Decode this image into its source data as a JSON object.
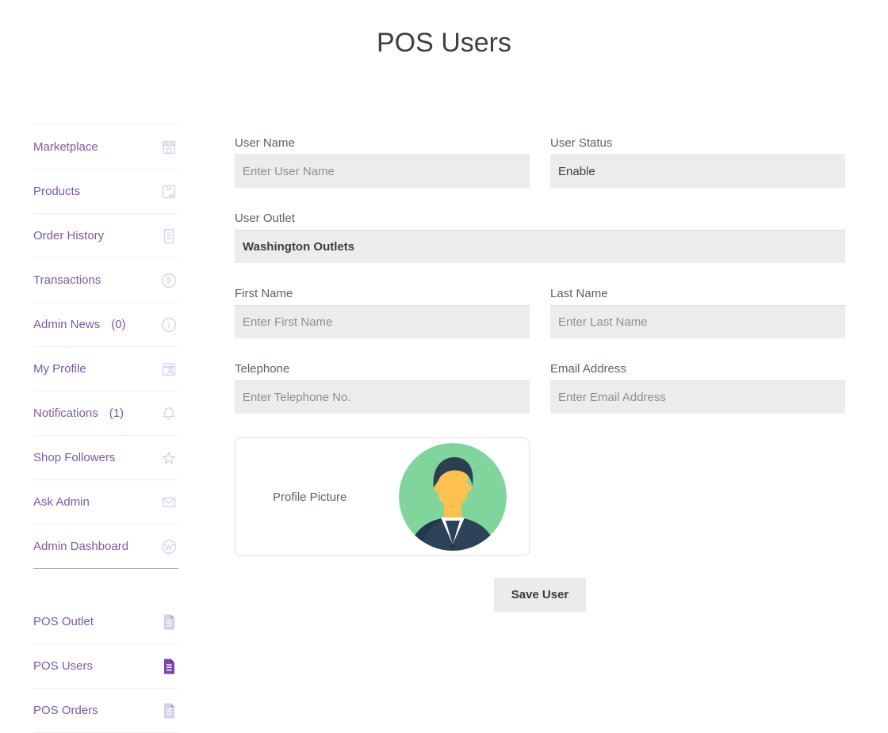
{
  "page": {
    "title": "POS Users"
  },
  "colors": {
    "accent_purple": "#7c59a5",
    "active_icon_purple": "#7d44ad",
    "icon_lavender": "#d8cfe9",
    "input_background": "#ececec",
    "avatar_green": "#80d59d"
  },
  "sidebar": {
    "main_items": [
      {
        "label": "Marketplace",
        "count": "",
        "icon": "storefront-icon",
        "active": false
      },
      {
        "label": "Products",
        "count": "",
        "icon": "product-box-icon",
        "active": false
      },
      {
        "label": "Order History",
        "count": "",
        "icon": "order-document-icon",
        "active": false
      },
      {
        "label": "Transactions",
        "count": "",
        "icon": "dollar-circle-icon",
        "active": false
      },
      {
        "label": "Admin News",
        "count": "(0)",
        "icon": "info-circle-icon",
        "active": false
      },
      {
        "label": "My Profile",
        "count": "",
        "icon": "profile-badge-icon",
        "active": false
      },
      {
        "label": "Notifications",
        "count": "(1)",
        "icon": "bell-icon",
        "active": false
      },
      {
        "label": "Shop Followers",
        "count": "",
        "icon": "star-icon",
        "active": false
      },
      {
        "label": "Ask Admin",
        "count": "",
        "icon": "envelope-icon",
        "active": false
      },
      {
        "label": "Admin Dashboard",
        "count": "",
        "icon": "wordpress-icon",
        "active": false
      }
    ],
    "pos_items": [
      {
        "label": "POS Outlet",
        "count": "",
        "icon": "file-icon",
        "active": false
      },
      {
        "label": "POS Users",
        "count": "",
        "icon": "file-icon",
        "active": true
      },
      {
        "label": "POS Orders",
        "count": "",
        "icon": "file-icon",
        "active": false
      }
    ]
  },
  "form": {
    "user_name": {
      "label": "User Name",
      "placeholder": "Enter User Name"
    },
    "user_status": {
      "label": "User Status",
      "value": "Enable"
    },
    "user_outlet": {
      "label": "User Outlet",
      "value": "Washington Outlets"
    },
    "first_name": {
      "label": "First Name",
      "placeholder": "Enter First Name"
    },
    "last_name": {
      "label": "Last Name",
      "placeholder": "Enter Last Name"
    },
    "telephone": {
      "label": "Telephone",
      "placeholder": "Enter Telephone No."
    },
    "email_address": {
      "label": "Email Address",
      "placeholder": "Enter Email Address"
    },
    "profile_picture": {
      "label": "Profile Picture"
    },
    "save_button_label": "Save User"
  }
}
